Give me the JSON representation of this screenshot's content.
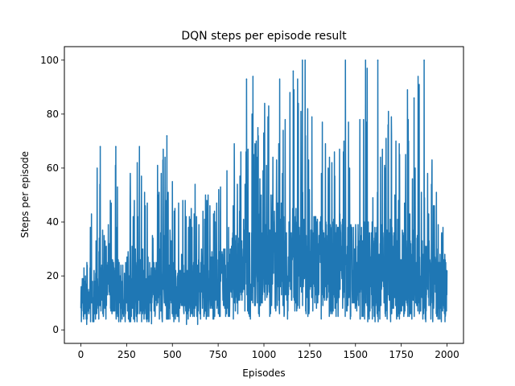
{
  "chart_data": {
    "type": "line",
    "title": "DQN steps per episode result",
    "xlabel": "Episodes",
    "ylabel": "Steps per episode",
    "xlim": [
      -90,
      2090
    ],
    "ylim": [
      -5,
      105
    ],
    "xticks": [
      0,
      250,
      500,
      750,
      1000,
      1250,
      1500,
      1750,
      2000
    ],
    "yticks": [
      0,
      20,
      40,
      60,
      80,
      100
    ],
    "grid": false,
    "legend": "none",
    "color": "#1f77b4",
    "episodes": 2000,
    "envelope": {
      "x": [
        0,
        50,
        100,
        150,
        200,
        250,
        300,
        350,
        400,
        450,
        500,
        550,
        600,
        650,
        700,
        750,
        800,
        850,
        900,
        950,
        1000,
        1050,
        1100,
        1150,
        1200,
        1250,
        1300,
        1350,
        1400,
        1450,
        1500,
        1550,
        1600,
        1650,
        1700,
        1750,
        1800,
        1850,
        1900,
        1950,
        2000
      ],
      "low": [
        2,
        2,
        2,
        3,
        3,
        3,
        3,
        3,
        2,
        2,
        3,
        2,
        2,
        2,
        3,
        3,
        4,
        4,
        4,
        4,
        4,
        5,
        4,
        4,
        5,
        4,
        4,
        4,
        4,
        3,
        3,
        3,
        3,
        3,
        3,
        4,
        3,
        3,
        3,
        2,
        3
      ],
      "typical": [
        12,
        14,
        16,
        17,
        18,
        17,
        18,
        17,
        17,
        18,
        17,
        16,
        17,
        18,
        18,
        19,
        22,
        24,
        26,
        26,
        27,
        28,
        28,
        30,
        30,
        29,
        28,
        27,
        27,
        26,
        26,
        27,
        26,
        26,
        25,
        24,
        24,
        24,
        22,
        20,
        18
      ],
      "high": [
        16,
        39,
        68,
        43,
        68,
        53,
        68,
        51,
        57,
        72,
        56,
        53,
        52,
        57,
        56,
        52,
        60,
        92,
        94,
        80,
        96,
        80,
        100,
        96,
        100,
        80,
        80,
        80,
        80,
        100,
        100,
        100,
        100,
        80,
        90,
        86,
        100,
        100,
        80,
        61,
        53
      ]
    },
    "peaks": [
      {
        "x": 106,
        "y": 68
      },
      {
        "x": 191,
        "y": 68
      },
      {
        "x": 320,
        "y": 68
      },
      {
        "x": 470,
        "y": 72
      },
      {
        "x": 905,
        "y": 93
      },
      {
        "x": 940,
        "y": 94
      },
      {
        "x": 1160,
        "y": 96
      },
      {
        "x": 1210,
        "y": 100
      },
      {
        "x": 1225,
        "y": 100
      },
      {
        "x": 1445,
        "y": 100
      },
      {
        "x": 1555,
        "y": 100
      },
      {
        "x": 1622,
        "y": 100
      },
      {
        "x": 1820,
        "y": 86
      },
      {
        "x": 1875,
        "y": 100
      }
    ]
  }
}
